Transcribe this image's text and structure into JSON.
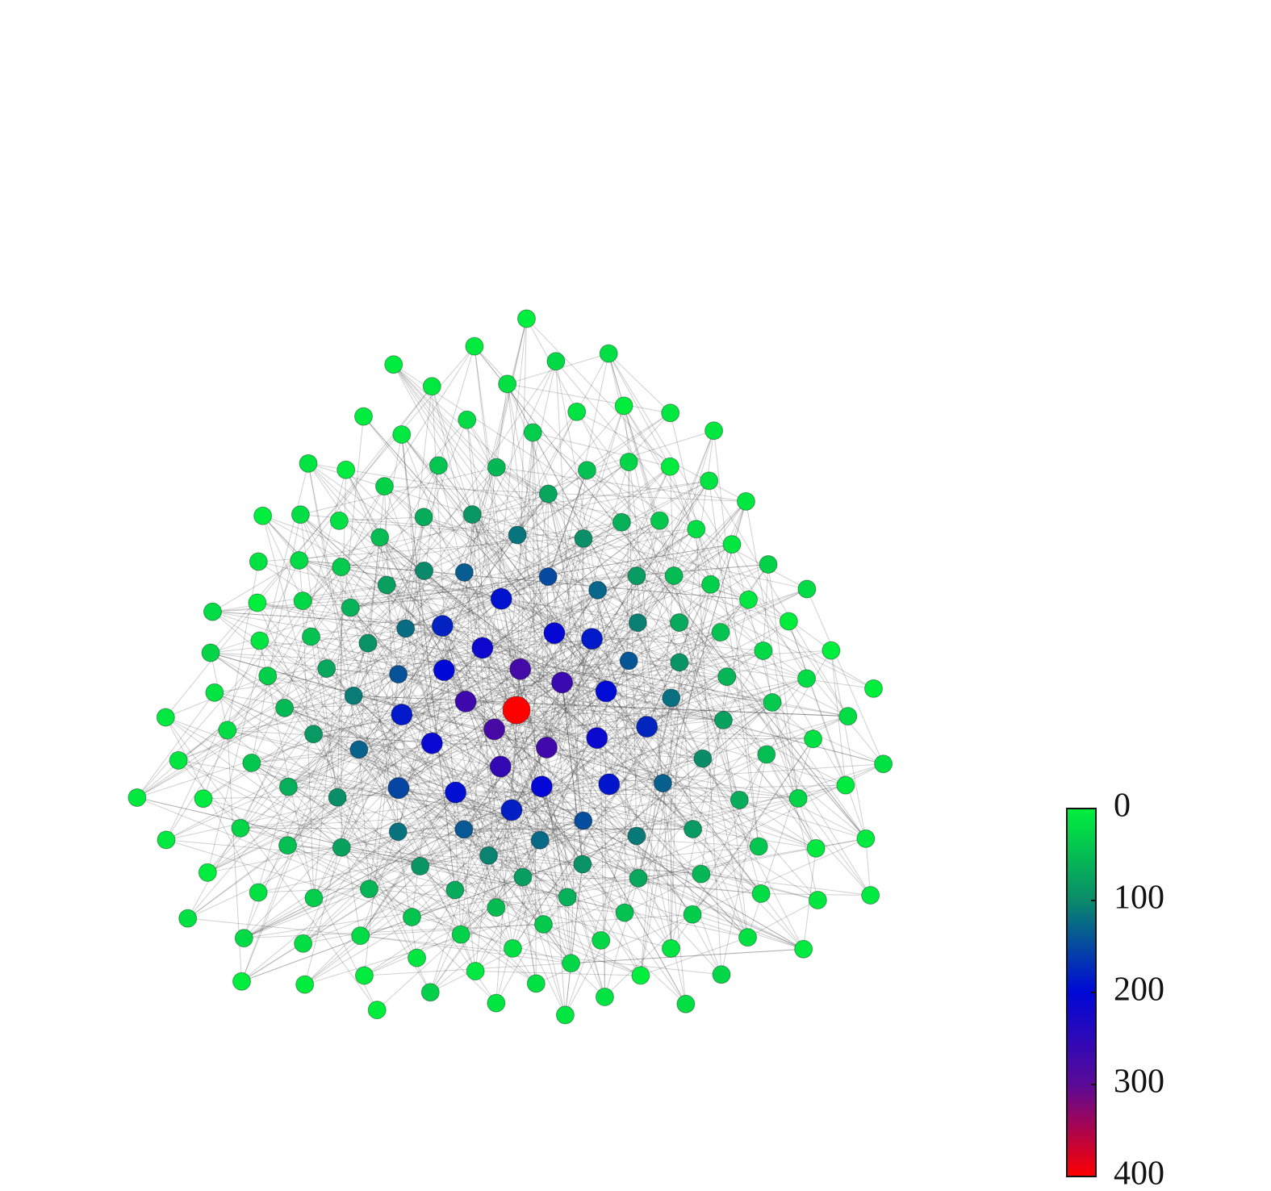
{
  "chart_data": {
    "type": "network",
    "nodes": {
      "values": [
        400,
        280,
        276,
        272,
        268,
        264,
        258,
        215,
        212,
        209,
        206,
        203,
        200,
        198,
        195,
        192,
        190,
        188,
        186,
        183,
        180,
        178,
        152,
        149,
        146,
        143,
        140,
        138,
        135,
        132,
        130,
        128,
        125,
        122,
        120,
        118,
        116,
        113,
        110,
        108,
        105,
        100,
        98,
        96,
        95,
        93,
        92,
        90,
        88,
        87,
        85,
        84,
        82,
        80,
        79,
        77,
        76,
        74,
        72,
        71,
        70,
        68,
        67,
        66,
        64,
        63,
        62,
        60,
        58,
        57,
        56,
        55,
        54,
        52,
        51,
        50,
        49,
        48,
        47,
        46,
        45,
        44,
        43,
        42,
        41,
        40,
        39,
        38,
        37,
        36,
        35,
        34,
        33,
        32,
        31,
        30,
        29,
        28,
        27,
        26,
        25,
        24,
        23,
        22,
        21,
        20,
        19,
        18,
        17,
        16,
        15,
        14,
        13,
        12,
        11,
        10,
        9,
        8,
        7,
        6,
        5,
        24,
        22,
        20,
        18,
        16,
        14,
        12,
        10,
        8,
        6,
        5,
        4,
        3,
        2,
        1,
        3,
        5,
        7,
        9,
        11,
        13,
        15,
        17,
        19,
        21,
        23,
        25,
        27,
        29,
        31,
        4,
        6,
        8,
        10,
        12,
        14,
        2,
        3,
        5,
        6,
        8,
        9,
        11,
        12,
        14,
        15,
        17,
        18,
        20,
        21,
        3,
        4,
        6,
        7,
        9,
        10,
        2,
        1,
        3,
        2
      ]
    },
    "colorbar": {
      "clim": [
        0,
        400
      ],
      "ticks": [
        0,
        100,
        200,
        300,
        400
      ],
      "colors": [
        "#00f03c",
        "#0a8a6a",
        "#0008d8",
        "#5a0a98",
        "#ff0000"
      ]
    }
  }
}
